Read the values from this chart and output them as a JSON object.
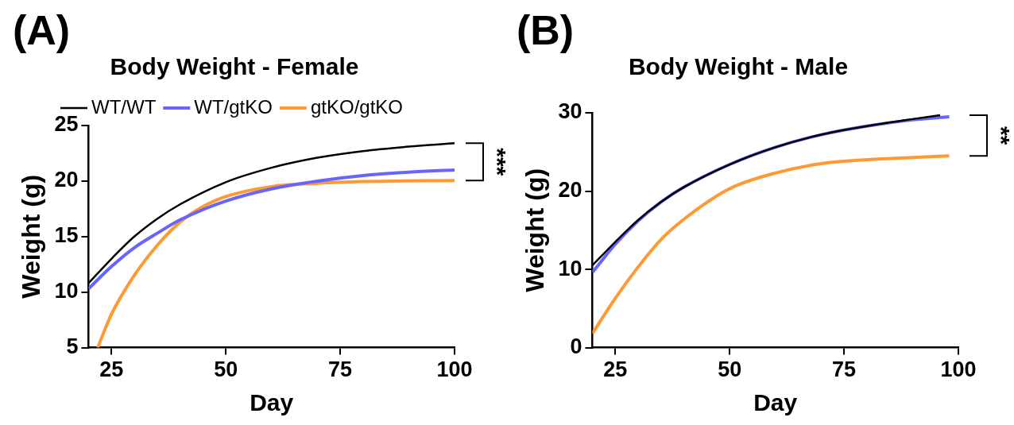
{
  "chart_data": [
    {
      "type": "line",
      "title": "Body Weight - Female",
      "xlabel": "Day",
      "ylabel": "Weight (g)",
      "annotations": [
        "(A)",
        "***"
      ],
      "xlim": [
        20,
        100
      ],
      "xticks": [
        25,
        50,
        75,
        100
      ],
      "ylim": [
        5,
        25
      ],
      "yticks": [
        5,
        10,
        15,
        20,
        25
      ],
      "legend": "top",
      "marker": "none",
      "grid": false,
      "series": [
        {
          "name": "WT/WT",
          "color": "#000000",
          "x": [
            20,
            25,
            30,
            35,
            40,
            50,
            60,
            70,
            80,
            90,
            100
          ],
          "values": [
            10.8,
            13,
            15,
            16.6,
            17.9,
            19.9,
            21.2,
            22.1,
            22.7,
            23.1,
            23.4
          ]
        },
        {
          "name": "WT/gtKO",
          "color": "#6666ff",
          "x": [
            20,
            25,
            30,
            35,
            40,
            50,
            60,
            70,
            80,
            90,
            100
          ],
          "values": [
            10.3,
            12.3,
            14,
            15.3,
            16.5,
            18.2,
            19.3,
            20,
            20.5,
            20.8,
            21
          ]
        },
        {
          "name": "gtKO/gtKO",
          "color": "#ff9933",
          "x": [
            22,
            25,
            30,
            35,
            40,
            45,
            50,
            60,
            70,
            80,
            100
          ],
          "values": [
            5,
            8,
            11.5,
            14.2,
            16.3,
            17.7,
            18.6,
            19.5,
            19.8,
            19.95,
            20.05
          ]
        }
      ]
    },
    {
      "type": "line",
      "title": "Body Weight - Male",
      "xlabel": "Day",
      "ylabel": "Weight (g)",
      "annotations": [
        "(B)",
        "**"
      ],
      "xlim": [
        20,
        100
      ],
      "xticks": [
        25,
        50,
        75,
        100
      ],
      "ylim": [
        0,
        30
      ],
      "yticks": [
        0,
        10,
        20,
        30
      ],
      "legend": false,
      "marker": "none",
      "grid": false,
      "series": [
        {
          "color": "#000000",
          "x": [
            20,
            25,
            30,
            35,
            40,
            50,
            60,
            70,
            80,
            90,
            96
          ],
          "values": [
            10.5,
            13.5,
            16.3,
            18.6,
            20.5,
            23.4,
            25.6,
            27.2,
            28.3,
            29.2,
            29.7
          ]
        },
        {
          "color": "#6666ff",
          "x": [
            20,
            25,
            30,
            35,
            40,
            50,
            60,
            70,
            80,
            90,
            98
          ],
          "values": [
            9.6,
            13.2,
            16.2,
            18.6,
            20.5,
            23.4,
            25.6,
            27.2,
            28.3,
            29.1,
            29.5
          ]
        },
        {
          "color": "#ff9933",
          "x": [
            20,
            25,
            30,
            35,
            40,
            50,
            60,
            70,
            80,
            90,
            98
          ],
          "values": [
            1.8,
            6.3,
            10.3,
            13.8,
            16.4,
            20.3,
            22.3,
            23.5,
            24,
            24.3,
            24.5
          ]
        }
      ]
    }
  ]
}
